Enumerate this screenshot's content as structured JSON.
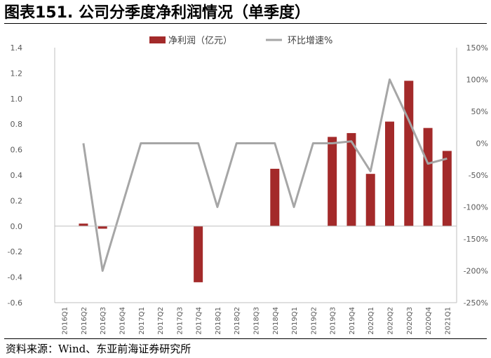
{
  "figure": {
    "title": "图表151. 公司分季度净利润情况（单季度）",
    "source": "资料来源：Wind、东亚前海证券研究所"
  },
  "colors": {
    "bar": "#A32A2A",
    "line": "#A6A6A6",
    "axis": "#BFBFBF",
    "tick_text": "#595959"
  },
  "chart_data": {
    "type": "bar",
    "categories": [
      "2016Q1",
      "2016Q2",
      "2016Q3",
      "2016Q4",
      "2017Q1",
      "2017Q2",
      "2017Q3",
      "2017Q4",
      "2018Q1",
      "2018Q2",
      "2018Q3",
      "2018Q4",
      "2019Q1",
      "2019Q2",
      "2019Q3",
      "2019Q4",
      "2020Q1",
      "2020Q2",
      "2020Q3",
      "2020Q4",
      "2021Q1"
    ],
    "series": [
      {
        "name": "净利润（亿元）",
        "type": "bar",
        "axis": "left",
        "values": [
          0,
          0.02,
          -0.02,
          0,
          0,
          0,
          0,
          -0.44,
          0,
          0,
          0,
          0.45,
          0,
          0,
          0.7,
          0.73,
          0.41,
          0.82,
          1.14,
          0.77,
          0.59
        ]
      },
      {
        "name": "环比增速%",
        "type": "line",
        "axis": "right",
        "values": [
          null,
          0,
          -200,
          -100,
          0,
          0,
          0,
          0,
          -100,
          0,
          0,
          0,
          -100,
          0,
          0,
          3,
          -44,
          100,
          36,
          -32,
          -24
        ]
      }
    ],
    "y_left": {
      "min": -0.6,
      "max": 1.4,
      "step": 0.2,
      "ticks": [
        "1.4",
        "1.2",
        "1.0",
        "0.8",
        "0.6",
        "0.4",
        "0.2",
        "0.0",
        "-0.2",
        "-0.4",
        "-0.6"
      ]
    },
    "y_right": {
      "min": -250,
      "max": 150,
      "step": 50,
      "ticks": [
        "150%",
        "100%",
        "50%",
        "0%",
        "-50%",
        "-100%",
        "-150%",
        "-200%",
        "-250%"
      ]
    },
    "legend_position": "top-center",
    "grid": false
  }
}
